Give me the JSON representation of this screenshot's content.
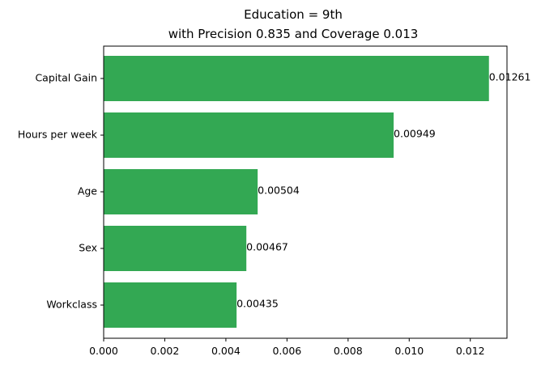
{
  "chart_data": {
    "type": "bar",
    "orientation": "horizontal",
    "title": "Education = 9th\nwith Precision 0.835 and Coverage 0.013",
    "title_lines": [
      "Education = 9th",
      "with Precision 0.835 and Coverage 0.013"
    ],
    "categories": [
      "Capital Gain",
      "Hours per week",
      "Age",
      "Sex",
      "Workclass"
    ],
    "values": [
      0.01261,
      0.00949,
      0.00504,
      0.00467,
      0.00435
    ],
    "value_labels": [
      "0.01261",
      "0.00949",
      "0.00504",
      "0.00467",
      "0.00435"
    ],
    "xlim": [
      0,
      0.0132
    ],
    "xticks": [
      0.0,
      0.002,
      0.004,
      0.006,
      0.008,
      0.01,
      0.012
    ],
    "xtick_labels": [
      "0.000",
      "0.002",
      "0.004",
      "0.006",
      "0.008",
      "0.010",
      "0.012"
    ],
    "xlabel": "",
    "ylabel": "",
    "bar_color": "#33a853",
    "grid": false,
    "legend": "none"
  }
}
